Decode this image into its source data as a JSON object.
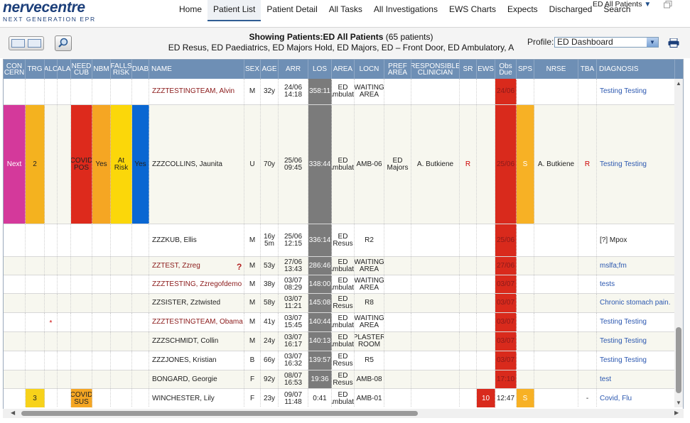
{
  "app": {
    "logo_main": "nervecentre",
    "logo_sub": "NEXT GENERATION EPR"
  },
  "nav": {
    "items": [
      "Home",
      "Patient List",
      "Patient Detail",
      "All Tasks",
      "All Investigations",
      "EWS Charts",
      "Expects",
      "Discharged",
      "Search"
    ],
    "active": "Patient List",
    "unit_selector": "ED All Patients"
  },
  "toolbar": {
    "showing_label": "Showing Patients:",
    "showing_value": "ED All Patients",
    "showing_count": "(65 patients)",
    "locations": "ED Resus, ED Paediatrics, ED Majors Hold, ED Majors, ED – Front Door, ED Ambulatory, A",
    "profile_label": "Profile:",
    "profile_value": "ED Dashboard"
  },
  "columns": [
    {
      "key": "concern",
      "label": "CON CERN"
    },
    {
      "key": "trg",
      "label": "TRG"
    },
    {
      "key": "alc",
      "label": "ALC"
    },
    {
      "key": "ala",
      "label": "ALA"
    },
    {
      "key": "needcub",
      "label": "NEED CUB"
    },
    {
      "key": "nbm",
      "label": "NBM"
    },
    {
      "key": "falls",
      "label": "FALLS RISK"
    },
    {
      "key": "diab",
      "label": "DIAB"
    },
    {
      "key": "name",
      "label": "NAME"
    },
    {
      "key": "sex",
      "label": "SEX"
    },
    {
      "key": "age",
      "label": "AGE"
    },
    {
      "key": "arr",
      "label": "ARR"
    },
    {
      "key": "los",
      "label": "LOS"
    },
    {
      "key": "area",
      "label": "AREA"
    },
    {
      "key": "locn",
      "label": "LOCN"
    },
    {
      "key": "pref",
      "label": "PREF AREA"
    },
    {
      "key": "resp",
      "label": "RESPONSIBLE CLINICIAN"
    },
    {
      "key": "sr",
      "label": "SR"
    },
    {
      "key": "ews",
      "label": "EWS"
    },
    {
      "key": "obs",
      "label": "Obs Due"
    },
    {
      "key": "sps",
      "label": "SPS"
    },
    {
      "key": "nrse",
      "label": "NRSE"
    },
    {
      "key": "tba",
      "label": "TBA"
    },
    {
      "key": "diag",
      "label": "DIAGNOSIS"
    }
  ],
  "rows": [
    {
      "concern": "",
      "trg": "",
      "alc": "",
      "ala": "",
      "needcub": "",
      "nbm": "",
      "falls": "",
      "diab": "",
      "name": "ZZZTESTINGTEAM, Alvin",
      "name_red": true,
      "sex": "M",
      "age": "32y",
      "arr": "24/06 14:18",
      "los": "358:11",
      "area": "ED Ambulato",
      "locn": "WAITING AREA",
      "pref": "",
      "resp": "",
      "sr": "",
      "ews": "",
      "obs": "24/06",
      "sps": "",
      "nrse": "",
      "tba": "",
      "diag": "Testing Testing",
      "diag_link": true
    },
    {
      "concern": "Next",
      "trg": "2",
      "alc": "",
      "ala": "",
      "needcub": "COVID POS",
      "nbm": "Yes",
      "falls": "At Risk",
      "diab": "Yes",
      "name": "ZZZCOLLINS, Jaunita",
      "name_red": false,
      "sex": "U",
      "age": "70y",
      "arr": "25/06 09:45",
      "los": "338:44",
      "area": "ED Ambulato",
      "locn": "AMB-06",
      "pref": "ED Majors",
      "resp": "A. Butkiene",
      "sr": "R",
      "ews": "",
      "obs": "25/06",
      "sps": "S",
      "nrse": "A. Butkiene",
      "tba": "R",
      "diag": "Testing Testing",
      "diag_link": true
    },
    {
      "concern": "",
      "trg": "",
      "alc": "",
      "ala": "",
      "needcub": "",
      "nbm": "",
      "falls": "",
      "diab": "",
      "name": "ZZZKUB, Ellis",
      "name_red": false,
      "sex": "M",
      "age": "16y 5m",
      "arr": "25/06 12:15",
      "los": "336:14",
      "area": "ED Resus",
      "locn": "R2",
      "pref": "",
      "resp": "",
      "sr": "",
      "ews": "",
      "obs": "25/06",
      "sps": "",
      "nrse": "",
      "tba": "",
      "diag": "[?] Mpox",
      "diag_link": false
    },
    {
      "concern": "",
      "trg": "",
      "alc": "",
      "ala": "",
      "needcub": "",
      "nbm": "",
      "falls": "",
      "diab": "",
      "name": "ZZTEST, Zzreg",
      "name_red": true,
      "qmark": "?",
      "sex": "M",
      "age": "53y",
      "arr": "27/06 13:43",
      "los": "286:46",
      "area": "ED Ambulato",
      "locn": "WAITING AREA",
      "pref": "",
      "resp": "",
      "sr": "",
      "ews": "",
      "obs": "27/06",
      "sps": "",
      "nrse": "",
      "tba": "",
      "diag": "mslfa;fm",
      "diag_link": true
    },
    {
      "concern": "",
      "trg": "",
      "alc": "",
      "ala": "",
      "needcub": "",
      "nbm": "",
      "falls": "",
      "diab": "",
      "name": "ZZZTESTING, Zzregofdemo",
      "name_red": true,
      "sex": "M",
      "age": "38y",
      "arr": "03/07 08:29",
      "los": "148:00",
      "area": "ED Ambulato",
      "locn": "WAITING AREA",
      "pref": "",
      "resp": "",
      "sr": "",
      "ews": "",
      "obs": "03/07",
      "sps": "",
      "nrse": "",
      "tba": "",
      "diag": "tests",
      "diag_link": true
    },
    {
      "concern": "",
      "trg": "",
      "alc": "",
      "ala": "",
      "needcub": "",
      "nbm": "",
      "falls": "",
      "diab": "",
      "name": "ZZSISTER, Zztwisted",
      "name_red": false,
      "sex": "M",
      "age": "58y",
      "arr": "03/07 11:21",
      "los": "145:08",
      "area": "ED Resus",
      "locn": "R8",
      "pref": "",
      "resp": "",
      "sr": "",
      "ews": "",
      "obs": "03/07",
      "sps": "",
      "nrse": "",
      "tba": "",
      "diag": "Chronic stomach pain.",
      "diag_link": true
    },
    {
      "concern": "",
      "trg": "",
      "alc": "*",
      "ala": "",
      "needcub": "",
      "nbm": "",
      "falls": "",
      "diab": "",
      "name": "ZZZTESTINGTEAM, Obama",
      "name_red": true,
      "sex": "M",
      "age": "41y",
      "arr": "03/07 15:45",
      "los": "140:44",
      "area": "ED Ambulato",
      "locn": "WAITING AREA",
      "pref": "",
      "resp": "",
      "sr": "",
      "ews": "",
      "obs": "03/07",
      "sps": "",
      "nrse": "",
      "tba": "",
      "diag": "Testing Testing",
      "diag_link": true
    },
    {
      "concern": "",
      "trg": "",
      "alc": "",
      "ala": "",
      "needcub": "",
      "nbm": "",
      "falls": "",
      "diab": "",
      "name": "ZZZSCHMIDT, Collin",
      "name_red": false,
      "sex": "M",
      "age": "24y",
      "arr": "03/07 16:17",
      "los": "140:13",
      "area": "ED Ambulato",
      "locn": "PLASTER ROOM",
      "pref": "",
      "resp": "",
      "sr": "",
      "ews": "",
      "obs": "03/07",
      "sps": "",
      "nrse": "",
      "tba": "",
      "diag": "Testing Testing",
      "diag_link": true
    },
    {
      "concern": "",
      "trg": "",
      "alc": "",
      "ala": "",
      "needcub": "",
      "nbm": "",
      "falls": "",
      "diab": "",
      "name": "ZZZJONES, Kristian",
      "name_red": false,
      "sex": "B",
      "age": "66y",
      "arr": "03/07 16:32",
      "los": "139:57",
      "area": "ED Resus",
      "locn": "R5",
      "pref": "",
      "resp": "",
      "sr": "",
      "ews": "",
      "obs": "03/07",
      "sps": "",
      "nrse": "",
      "tba": "",
      "diag": "Testing Testing",
      "diag_link": true
    },
    {
      "concern": "",
      "trg": "",
      "alc": "",
      "ala": "",
      "needcub": "",
      "nbm": "",
      "falls": "",
      "diab": "",
      "name": "BONGARD, Georgie",
      "name_red": false,
      "sex": "F",
      "age": "92y",
      "arr": "08/07 16:53",
      "los": "19:36",
      "area": "ED Resus",
      "locn": "AMB-08",
      "pref": "",
      "resp": "",
      "sr": "",
      "ews": "",
      "obs": "17:10",
      "sps": "",
      "nrse": "",
      "tba": "",
      "diag": "test",
      "diag_link": true
    },
    {
      "concern": "",
      "trg": "3",
      "alc": "",
      "ala": "",
      "needcub": "COVID SUS",
      "nbm": "",
      "falls": "",
      "diab": "",
      "name": "WINCHESTER, Lily",
      "name_red": false,
      "sex": "F",
      "age": "23y",
      "arr": "09/07 11:48",
      "los": "0:41",
      "area": "ED Ambulato",
      "locn": "AMB-01",
      "pref": "",
      "resp": "",
      "sr": "",
      "ews": "10",
      "obs": "12:47",
      "sps": "S",
      "nrse": "",
      "tba": "-",
      "diag": "Covid, Flu",
      "diag_link": true
    }
  ],
  "colors": {
    "header_bg": "#6e8fb5",
    "concern_pink": "#d4399b",
    "trg_orange": "#f4b21f",
    "trg_yellow": "#f7d21a",
    "covid_red": "#dd2a1c",
    "covid_sus_orange": "#f5a623",
    "nbm_orange": "#f5a623",
    "falls_yellow": "#fbd70a",
    "diab_blue": "#0a67d2",
    "los_grey": "#7b7b7b",
    "obs_red": "#d92a1c",
    "ews_red": "#d92a1c",
    "sps_orange": "#f7b125"
  }
}
